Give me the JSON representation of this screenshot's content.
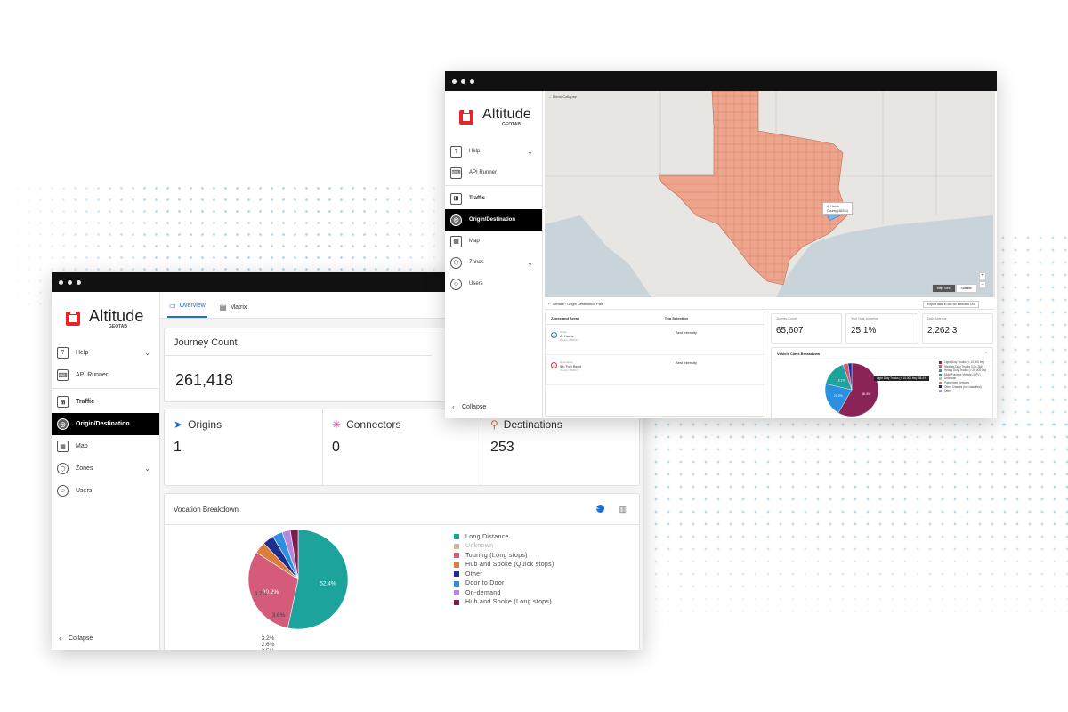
{
  "colors": {
    "accent": "#1f6fd1",
    "brand_red": "#e4262c",
    "active_nav": "#000000"
  },
  "brand": {
    "name": "Altitude",
    "sub": "GEOTAB"
  },
  "nav": {
    "help": "Help",
    "api_runner": "API Runner",
    "traffic": "Traffic",
    "origin_destination": "Origin/Destination",
    "map": "Map",
    "zones": "Zones",
    "users": "Users",
    "collapse": "Collapse"
  },
  "front": {
    "tabs": {
      "overview": "Overview",
      "matrix": "Matrix"
    },
    "journey": {
      "title": "Journey Count",
      "value": "261,418"
    },
    "metrics": {
      "origins": {
        "label": "Origins",
        "value": "1"
      },
      "connectors": {
        "label": "Connectors",
        "value": "0"
      },
      "destinations": {
        "label": "Destinations",
        "value": "253"
      }
    },
    "vocation": {
      "title": "Vocation Breakdown",
      "legend": [
        {
          "label": "Long Distance",
          "color": "#1ba39c"
        },
        {
          "label": "Unknown",
          "color": "#d5b89a"
        },
        {
          "label": "Touring (Long stops)",
          "color": "#d45b7a"
        },
        {
          "label": "Hub and Spoke (Quick stops)",
          "color": "#dd7d3c"
        },
        {
          "label": "Other",
          "color": "#1f2f8c"
        },
        {
          "label": "Door to Door",
          "color": "#2d8fe0"
        },
        {
          "label": "On-demand",
          "color": "#b487e0"
        },
        {
          "label": "Hub and Spoke (Long stops)",
          "color": "#7d1d4d"
        }
      ]
    }
  },
  "chart_data": {
    "type": "pie",
    "title": "Vocation Breakdown",
    "categories": [
      "Long Distance",
      "Touring (Long stops)",
      "Hub and Spoke (Quick stops)",
      "Other",
      "Door to Door",
      "On-demand",
      "Hub and Spoke (Long stops)"
    ],
    "values": [
      52.4,
      30.2,
      3.7,
      3.6,
      3.2,
      2.6,
      2.5
    ],
    "data_labels": [
      "52.4%",
      "30.2%",
      "3.7%",
      "3.6%",
      "3.2%",
      "2.6%",
      "2.5%"
    ]
  },
  "back": {
    "map_back": "← Menu Collapse",
    "tooltip": {
      "name": "A: Harris",
      "sub": "County (48201)"
    },
    "map_toggle": {
      "map": "Map Tiles",
      "satellite": "Satellite"
    },
    "details": "Details › Origin Destination Pair",
    "export": "Export data in csv for selected OD",
    "zones_header": {
      "left": "Zones and Areas",
      "right": "Trip Selection"
    },
    "zone_rows": [
      {
        "badge": "O",
        "type": "Origin",
        "name": "A: Harris",
        "sub": "County (48201)",
        "right": "Best Intensity",
        "color": "#1f6fd1"
      },
      {
        "badge": "D",
        "type": "Destination",
        "name": "53: Fort Bend",
        "sub": "County (48157)",
        "right": "Best Intensity",
        "color": "#e4262c"
      }
    ],
    "stats": [
      {
        "label": "Journey Count",
        "value": "65,607"
      },
      {
        "label": "% of Total Journeys",
        "value": "25.1%"
      },
      {
        "label": "Daily Average",
        "value": "2,262.3"
      }
    ],
    "vehicle": {
      "title": "Vehicle Class Breakdown",
      "tooltip": "Light Duty Trucks (< 10,000 lbs): 58.4%",
      "legend": [
        {
          "label": "Light Duty Trucks (< 10,000 lbs)",
          "color": "#8a2457"
        },
        {
          "label": "Medium Duty Trucks (10k-26k)",
          "color": "#d45b7a"
        },
        {
          "label": "Heavy Duty Trucks (> 26,000 lbs)",
          "color": "#2d8fe0"
        },
        {
          "label": "Multi Purpose Vehicle (MPV)",
          "color": "#1ba39c"
        },
        {
          "label": "Unknown",
          "color": "#d5b89a"
        },
        {
          "label": "Passenger Vehicles",
          "color": "#dd7d3c"
        },
        {
          "label": "Other Classes (not classified)",
          "color": "#1f2f8c"
        },
        {
          "label": "Other",
          "color": "#b487e0"
        }
      ]
    },
    "vehicle_chart": {
      "type": "pie",
      "values": [
        58.4,
        20.2,
        16.1,
        3.1,
        2.2
      ],
      "data_labels": [
        "58.4%",
        "20.2%",
        "16.1%",
        "3.1%",
        "2.2%"
      ]
    }
  }
}
